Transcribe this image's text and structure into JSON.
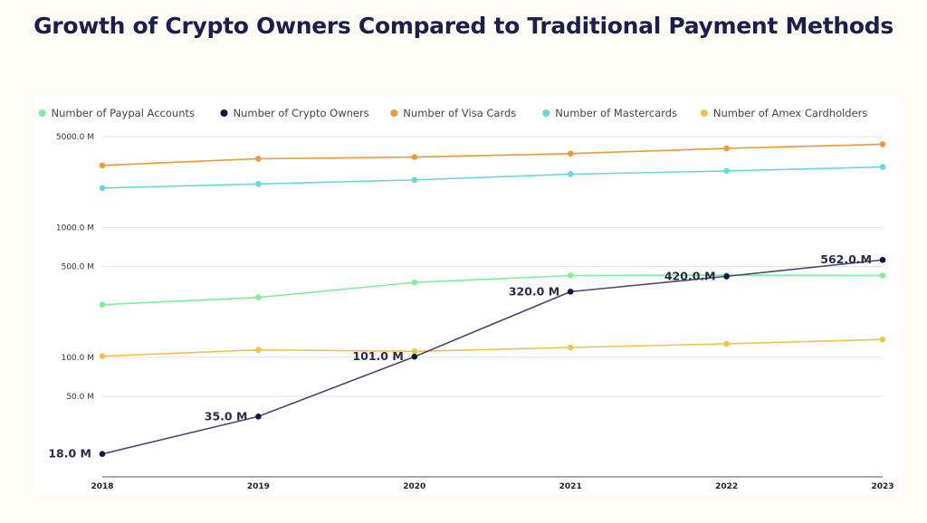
{
  "chart_data": {
    "type": "line",
    "title": "Growth of Crypto Owners Compared to Traditional Payment Methods",
    "xlabel": "",
    "ylabel": "",
    "y_scale": "log",
    "ylim": [
      12,
      5000
    ],
    "grid": true,
    "legend_position": "top",
    "x": [
      "2018",
      "2019",
      "2020",
      "2021",
      "2022",
      "2023"
    ],
    "y_ticks": [
      {
        "value": 5000,
        "label": "5000.0 M"
      },
      {
        "value": 1000,
        "label": "1000.0 M"
      },
      {
        "value": 500,
        "label": "500.0 M"
      },
      {
        "value": 100,
        "label": "100.0 M"
      },
      {
        "value": 50,
        "label": "50.0 M"
      }
    ],
    "series": [
      {
        "name": "Number of Paypal Accounts",
        "color": "#7df09a",
        "values": [
          254,
          289,
          377,
          426,
          429,
          426
        ]
      },
      {
        "name": "Number of Crypto Owners",
        "color": "#16163a",
        "values": [
          18,
          35,
          101,
          320,
          420,
          562
        ],
        "labels": [
          "18.0 M",
          "35.0 M",
          "101.0 M",
          "320.0 M",
          "420.0.M",
          "562.0.M"
        ]
      },
      {
        "name": "Number of Visa Cards",
        "color": "#ee9a3a",
        "values": [
          3000,
          3380,
          3480,
          3700,
          4060,
          4370
        ]
      },
      {
        "name": "Number of Mastercards",
        "color": "#6ad6e0",
        "values": [
          2010,
          2160,
          2320,
          2570,
          2720,
          2920
        ]
      },
      {
        "name": "Number of Amex Cardholders",
        "color": "#f2c24a",
        "values": [
          102,
          114,
          111,
          119,
          127,
          137
        ]
      }
    ]
  }
}
